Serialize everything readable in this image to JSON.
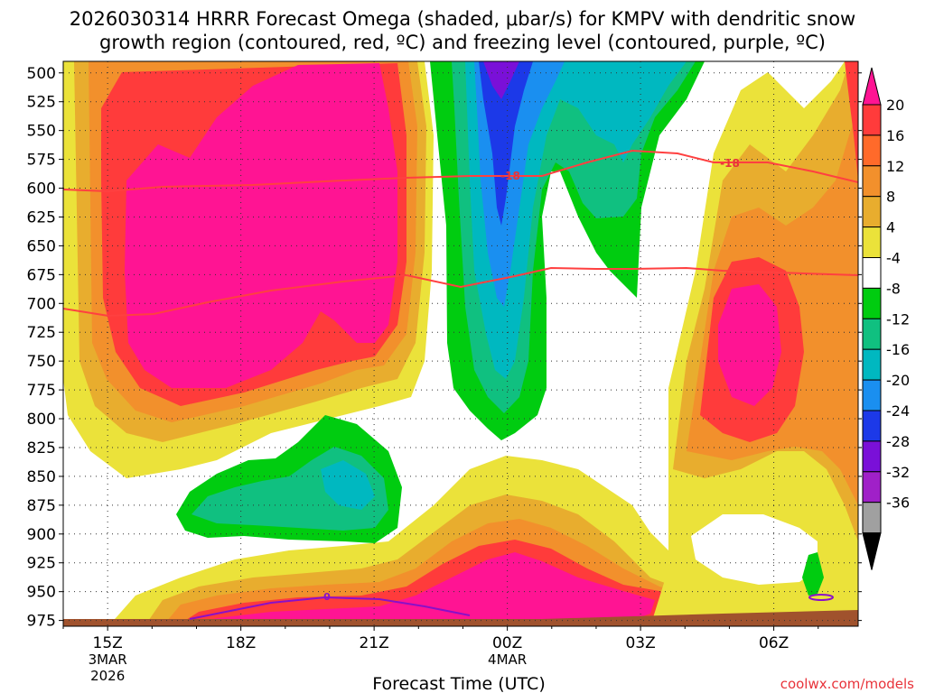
{
  "chart_data": {
    "type": "time-height cross-section",
    "title_line1": "2026030314 HRRR Forecast Omega (shaded, μbar/s) for KMPV with dendritic snow",
    "title_line2": "growth region (contoured, red, ºC) and freezing level (contoured, purple, ºC)",
    "xlabel": "Forecast Time (UTC)",
    "x_ticks": [
      {
        "hour": 15,
        "label": "15Z",
        "sub1": "3MAR",
        "sub2": "2026"
      },
      {
        "hour": 18,
        "label": "18Z",
        "sub1": "",
        "sub2": ""
      },
      {
        "hour": 21,
        "label": "21Z",
        "sub1": "",
        "sub2": ""
      },
      {
        "hour": 24,
        "label": "00Z",
        "sub1": "4MAR",
        "sub2": ""
      },
      {
        "hour": 27,
        "label": "03Z",
        "sub1": "",
        "sub2": ""
      },
      {
        "hour": 30,
        "label": "06Z",
        "sub1": "",
        "sub2": ""
      }
    ],
    "x_range_hours": [
      14.0,
      31.9
    ],
    "y_ticks": [
      500,
      525,
      550,
      575,
      600,
      625,
      650,
      675,
      700,
      725,
      750,
      775,
      800,
      825,
      850,
      875,
      900,
      925,
      950,
      975
    ],
    "y_range_mb": [
      490,
      980
    ],
    "colorbar": {
      "labels": [
        "20",
        "16",
        "12",
        "8",
        "4",
        "-4",
        "-8",
        "-12",
        "-16",
        "-20",
        "-24",
        "-28",
        "-32",
        "-36"
      ],
      "colors": [
        "#ff1493",
        "#ff3b3b",
        "#ff6a2a",
        "#f2902c",
        "#e8ad2e",
        "#ebe23a",
        "#ffffff",
        "#00cc10",
        "#10c080",
        "#00b8c0",
        "#1a8ff0",
        "#1c39e8",
        "#7a10d8",
        "#a020c8",
        "#a0a0a0",
        "#000000"
      ]
    },
    "contours": {
      "dendritic_growth_levels_C": [
        -12,
        -18
      ],
      "dendritic_labels": [
        "-18",
        "-18"
      ],
      "freezing_level_C": 0,
      "freezing_labels": [
        "0"
      ]
    },
    "credit": "coolwx.com/models"
  }
}
